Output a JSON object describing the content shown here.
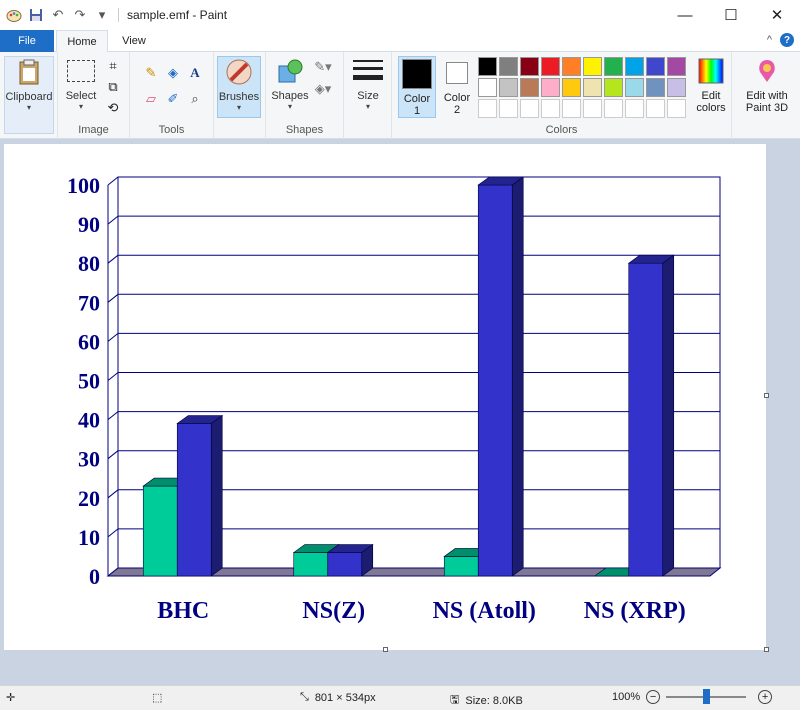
{
  "window": {
    "title": "sample.emf - Paint",
    "minimize": "—",
    "maximize": "☐",
    "close": "✕"
  },
  "quick_access": {
    "save_icon": "save-icon",
    "undo_icon": "undo-icon",
    "redo_icon": "redo-icon",
    "customize": "▾"
  },
  "tabs": {
    "file": "File",
    "home": "Home",
    "view": "View",
    "collapse": "^",
    "help": "?"
  },
  "ribbon": {
    "clipboard": {
      "label": "Clipboard"
    },
    "image": {
      "group": "Image",
      "select": "Select"
    },
    "tools": {
      "group": "Tools"
    },
    "brushes": {
      "label": "Brushes"
    },
    "shapes": {
      "group": "Shapes",
      "label": "Shapes"
    },
    "size": {
      "label": "Size"
    },
    "colors": {
      "group": "Colors",
      "color1": "Color\n1",
      "color1_a": "Color",
      "color1_b": "1",
      "color2_a": "Color",
      "color2_b": "2",
      "color1_value": "#000000",
      "color2_value": "#ffffff",
      "edit_a": "Edit",
      "edit_b": "colors",
      "paint3d_a": "Edit with",
      "paint3d_b": "Paint 3D",
      "palette": [
        "#000000",
        "#7f7f7f",
        "#880015",
        "#ed1c24",
        "#ff7f27",
        "#fff200",
        "#22b14c",
        "#00a2e8",
        "#3f48cc",
        "#a349a4",
        "#ffffff",
        "#c3c3c3",
        "#b97a57",
        "#ffaec9",
        "#ffc90e",
        "#efe4b0",
        "#b5e61d",
        "#99d9ea",
        "#7092be",
        "#c8bfe7",
        "#ffffff",
        "#ffffff",
        "#ffffff",
        "#ffffff",
        "#ffffff",
        "#ffffff",
        "#ffffff",
        "#ffffff",
        "#ffffff",
        "#ffffff"
      ]
    }
  },
  "chart_data": {
    "type": "bar",
    "categories": [
      "BHC",
      "NS(Z)",
      "NS (Atoll)",
      "NS (XRP)"
    ],
    "series": [
      {
        "color": "#00cc99",
        "values": [
          23,
          6,
          5,
          0
        ]
      },
      {
        "color": "#3333cc",
        "values": [
          39,
          6,
          100,
          80
        ]
      }
    ],
    "ylim": [
      0,
      100
    ],
    "yticks": [
      "0",
      "10",
      "20",
      "30",
      "40",
      "50",
      "60",
      "70",
      "80",
      "90",
      "100"
    ],
    "grid": true,
    "title": "",
    "xlabel": "",
    "ylabel": ""
  },
  "status": {
    "dimensions": "801 × 534px",
    "size": "Size: 8.0KB",
    "zoom": "100%",
    "zoom_fraction": 0.5
  }
}
